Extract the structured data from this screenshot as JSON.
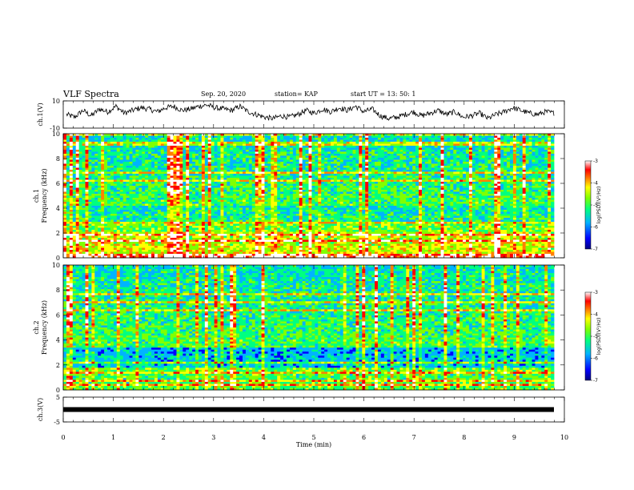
{
  "header": {
    "title": "VLF Spectra",
    "date": "Sep. 20, 2020",
    "station": "station= KAP",
    "start": "start  UT  =   13: 50: 1"
  },
  "chart_data": [
    {
      "type": "line",
      "ylabel": "ch.1(V)",
      "ylim": [
        -10,
        10
      ],
      "yticks": [
        "10",
        "-10"
      ],
      "xlim": [
        0,
        10
      ],
      "series": [
        {
          "values": [
            0,
            -2,
            3,
            -1,
            4,
            2,
            6,
            1,
            3,
            5,
            4,
            2,
            5,
            6,
            3,
            4,
            6,
            7,
            5,
            4,
            3,
            6,
            2,
            0,
            -2,
            -3,
            -1,
            -2,
            0,
            3,
            1,
            4,
            2,
            5,
            3,
            6,
            2,
            4,
            -1,
            -3,
            -2,
            0,
            2,
            -1,
            1,
            3,
            0,
            2,
            -2,
            -1,
            1,
            -3,
            0,
            2,
            5,
            3,
            1,
            0,
            2,
            1
          ]
        }
      ]
    },
    {
      "type": "heatmap",
      "ylabel": "ch.1\nFrequency  (kHz)",
      "xlim": [
        0,
        10
      ],
      "ylim": [
        0,
        10
      ],
      "yticks": [
        "10",
        "8",
        "6",
        "4",
        "2",
        "0"
      ]
    },
    {
      "type": "heatmap",
      "ylabel": "ch.2\nFrequency  (kHz)",
      "xlim": [
        0,
        10
      ],
      "ylim": [
        0,
        10
      ],
      "yticks": [
        "10",
        "8",
        "6",
        "4",
        "2",
        "0"
      ]
    },
    {
      "type": "line",
      "ylabel": "ch.3(V)",
      "ylim": [
        -5,
        5
      ],
      "yticks": [
        "5",
        "-5"
      ],
      "xlim": [
        0,
        10
      ],
      "xlabel": "Time  (min)",
      "xticks": [
        "0",
        "1",
        "2",
        "3",
        "4",
        "5",
        "6",
        "7",
        "8",
        "9",
        "10"
      ],
      "series": [
        {
          "values": [
            0,
            0
          ]
        }
      ]
    }
  ],
  "colorbar": {
    "label": "log(PSD)(V²/Hz)",
    "ticks": [
      "-3",
      "-4",
      "-5",
      "-6",
      "-7"
    ],
    "range": [
      -7,
      -3
    ],
    "colors": [
      "#000080",
      "#0000ff",
      "#00b4ff",
      "#00ff80",
      "#80ff00",
      "#ffff00",
      "#ff8000",
      "#ff0000",
      "#ffffff"
    ]
  }
}
